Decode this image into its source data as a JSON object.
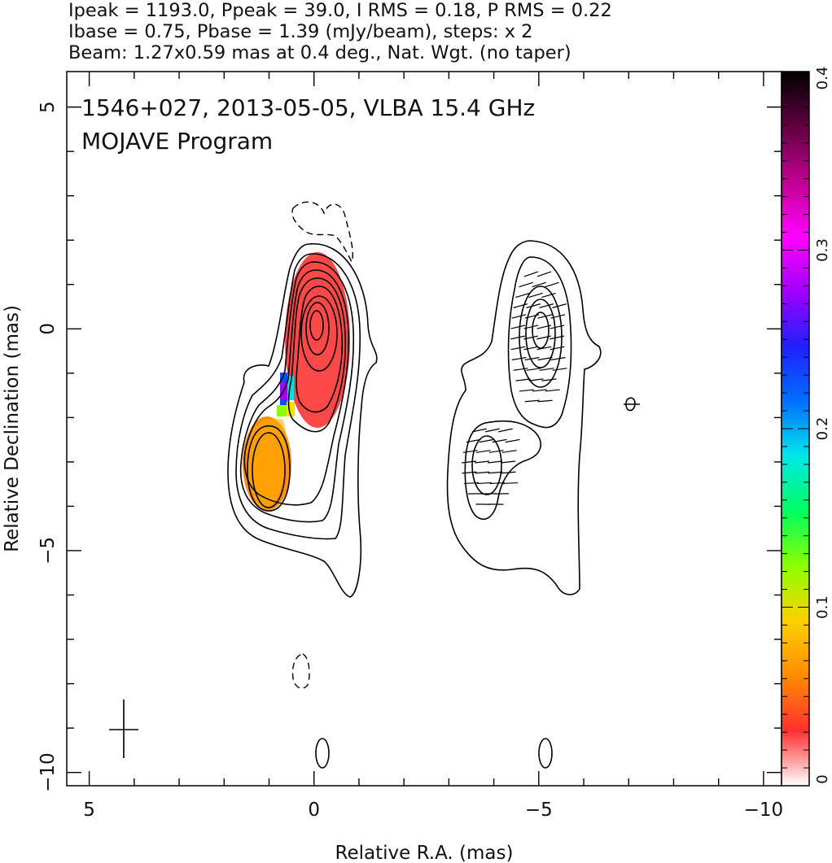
{
  "header": {
    "line1": "Ipeak = 1193.0, Ppeak = 39.0, I RMS = 0.18, P RMS = 0.22",
    "line2": "Ibase = 0.75, Pbase = 1.39 (mJy/beam), steps: x 2",
    "line3": "Beam: 1.27x0.59 mas at 0.4 deg., Nat. Wgt. (no taper)"
  },
  "chart_data": {
    "type": "contour",
    "title": "1546+027, 2013-05-05, VLBA 15.4 GHz",
    "subtitle": "MOJAVE Program",
    "xlabel": "Relative R.A. (mas)",
    "ylabel": "Relative Declination (mas)",
    "xlim": [
      5.5,
      -10.4
    ],
    "ylim": [
      -10.3,
      5.8
    ],
    "x_ticks": [
      5,
      0,
      -5,
      -10
    ],
    "x_tick_labels": [
      "5",
      "0",
      "−5",
      "−10"
    ],
    "y_ticks": [
      5,
      0,
      -5,
      -10
    ],
    "y_tick_labels": [
      "5",
      "0",
      "−5",
      "−10"
    ],
    "colorbar": {
      "range": [
        0,
        0.4
      ],
      "ticks": [
        0,
        0.1,
        0.2,
        0.3,
        0.4
      ],
      "tick_labels": [
        "0",
        "0.1",
        "0.2",
        "0.3",
        "0.4"
      ],
      "colormap": [
        "#ffffff",
        "#ff3030",
        "#ff8c00",
        "#ffd000",
        "#8cff00",
        "#00ff60",
        "#00e8e8",
        "#0070ff",
        "#2020ff",
        "#a000ff",
        "#ff00ff",
        "#c00090",
        "#600040",
        "#000000"
      ]
    },
    "panels": [
      {
        "name": "left-panel-total-intensity-with-fractional-polarization",
        "x_offset": 0,
        "core": {
          "x": -0.1,
          "y": -0.1
        },
        "jet_knot": {
          "x": 1.0,
          "y": -3.3
        },
        "fractional_polarization": [
          {
            "region": "core",
            "x": -0.1,
            "y": -0.3,
            "value": 0.04
          },
          {
            "region": "jet-knot",
            "x": 1.0,
            "y": -3.3,
            "value": 0.1
          },
          {
            "region": "bridge",
            "x": 0.6,
            "y": -1.6,
            "value": 0.28
          }
        ]
      },
      {
        "name": "right-panel-polarized-intensity-with-evpa-ticks",
        "x_offset": -5.1,
        "core": {
          "x": -5.2,
          "y": -0.1
        },
        "jet_knot": {
          "x": -3.9,
          "y": -3.3
        }
      }
    ],
    "beam": {
      "major_mas": 1.27,
      "minor_mas": 0.59,
      "pa_deg": 0.4,
      "x": 4.2,
      "y": -9.0
    }
  }
}
